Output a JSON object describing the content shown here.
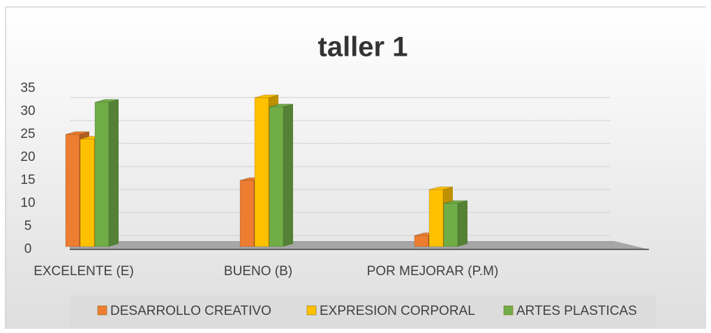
{
  "chart_data": {
    "type": "bar3d",
    "title": "taller 1",
    "categories": [
      "EXCELENTE (E)",
      "BUENO (B)",
      "POR MEJORAR (P.M)"
    ],
    "series": [
      {
        "name": "DESARROLLO CREATIVO",
        "color": "#ed7d31",
        "values": [
          25,
          15,
          3
        ]
      },
      {
        "name": "EXPRESION CORPORAL",
        "color": "#ffc000",
        "values": [
          24,
          33,
          13
        ]
      },
      {
        "name": "ARTES PLASTICAS",
        "color": "#70ad47",
        "values": [
          32,
          31,
          10
        ]
      }
    ],
    "ylim": [
      0,
      35
    ],
    "yticks": [
      0,
      5,
      10,
      15,
      20,
      25,
      30,
      35
    ],
    "grid": true,
    "legend": "bottom"
  }
}
